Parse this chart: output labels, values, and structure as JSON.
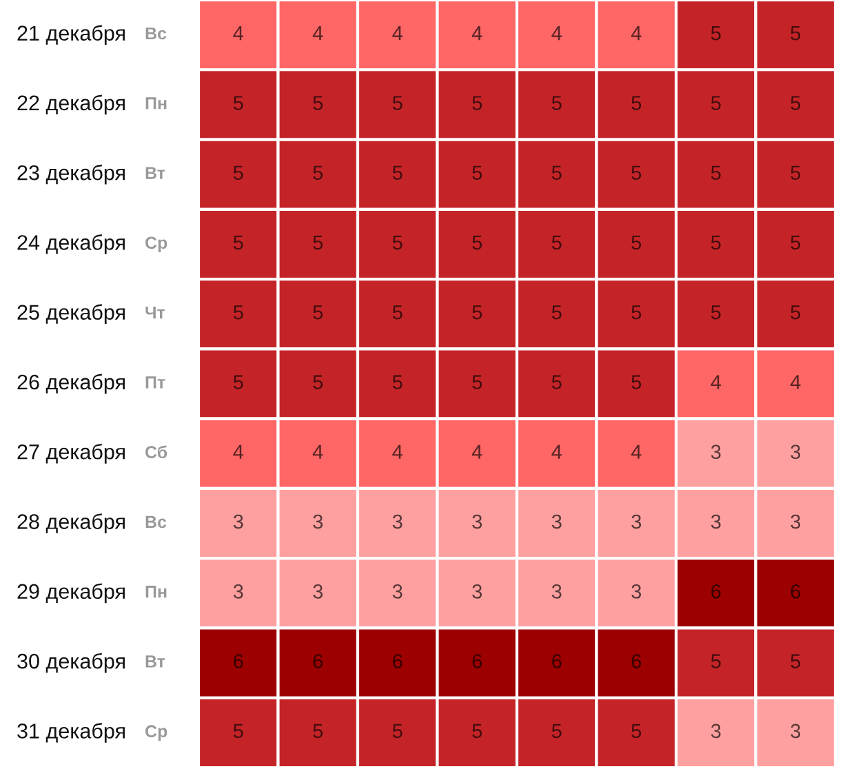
{
  "chart_data": {
    "type": "heatmap",
    "categories": [
      null,
      null,
      null,
      null,
      null,
      null,
      null,
      null
    ],
    "y_categories": [
      "21 декабря",
      "22 декабря",
      "23 декабря",
      "24 декабря",
      "25 декабря",
      "26 декабря",
      "27 декабря",
      "28 декабря",
      "29 декабря",
      "30 декабря",
      "31 декабря"
    ],
    "y2_categories": [
      "Вс",
      "Пн",
      "Вт",
      "Ср",
      "Чт",
      "Пт",
      "Сб",
      "Вс",
      "Пн",
      "Вт",
      "Ср"
    ],
    "cells": [
      [
        4,
        4,
        4,
        4,
        4,
        4,
        5,
        5
      ],
      [
        5,
        5,
        5,
        5,
        5,
        5,
        5,
        5
      ],
      [
        5,
        5,
        5,
        5,
        5,
        5,
        5,
        5
      ],
      [
        5,
        5,
        5,
        5,
        5,
        5,
        5,
        5
      ],
      [
        5,
        5,
        5,
        5,
        5,
        5,
        5,
        5
      ],
      [
        5,
        5,
        5,
        5,
        5,
        5,
        4,
        4
      ],
      [
        4,
        4,
        4,
        4,
        4,
        4,
        3,
        3
      ],
      [
        3,
        3,
        3,
        3,
        3,
        3,
        3,
        3
      ],
      [
        3,
        3,
        3,
        3,
        3,
        3,
        6,
        6
      ],
      [
        6,
        6,
        6,
        6,
        6,
        6,
        5,
        5
      ],
      [
        5,
        5,
        5,
        5,
        5,
        5,
        3,
        3
      ]
    ],
    "colors": [
      "#ffa0a0",
      "#ff6666",
      "#c42428",
      "#9c0000"
    ],
    "data_labels": true
  }
}
